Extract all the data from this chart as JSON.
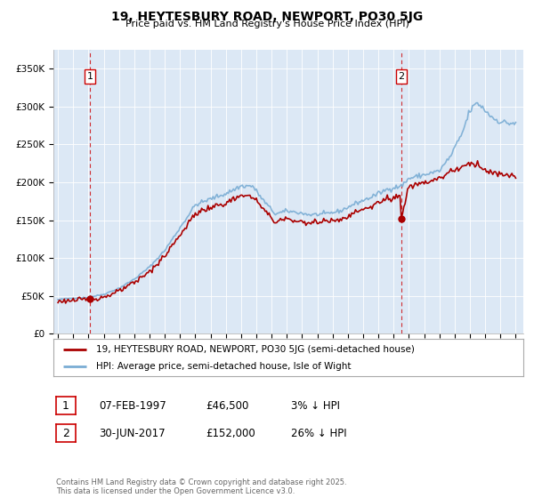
{
  "title": "19, HEYTESBURY ROAD, NEWPORT, PO30 5JG",
  "subtitle": "Price paid vs. HM Land Registry's House Price Index (HPI)",
  "fig_bg_color": "#ffffff",
  "plot_bg_color": "#dce8f5",
  "yticks": [
    0,
    50000,
    100000,
    150000,
    200000,
    250000,
    300000,
    350000
  ],
  "ytick_labels": [
    "£0",
    "£50K",
    "£100K",
    "£150K",
    "£200K",
    "£250K",
    "£300K",
    "£350K"
  ],
  "xmin": 1994.7,
  "xmax": 2025.5,
  "ymin": 0,
  "ymax": 375000,
  "purchase1_date": 1997.1,
  "purchase1_price": 46500,
  "purchase1_label": "1",
  "purchase2_date": 2017.5,
  "purchase2_price": 152000,
  "purchase2_label": "2",
  "line_color_hpi": "#7aadd4",
  "line_color_sold": "#aa0000",
  "dashed_color": "#cc0000",
  "legend_label_sold": "19, HEYTESBURY ROAD, NEWPORT, PO30 5JG (semi-detached house)",
  "legend_label_hpi": "HPI: Average price, semi-detached house, Isle of Wight",
  "footer": "Contains HM Land Registry data © Crown copyright and database right 2025.\nThis data is licensed under the Open Government Licence v3.0.",
  "ann1_date": "07-FEB-1997",
  "ann1_price": "£46,500",
  "ann1_pct": "3% ↓ HPI",
  "ann2_date": "30-JUN-2017",
  "ann2_price": "£152,000",
  "ann2_pct": "26% ↓ HPI"
}
